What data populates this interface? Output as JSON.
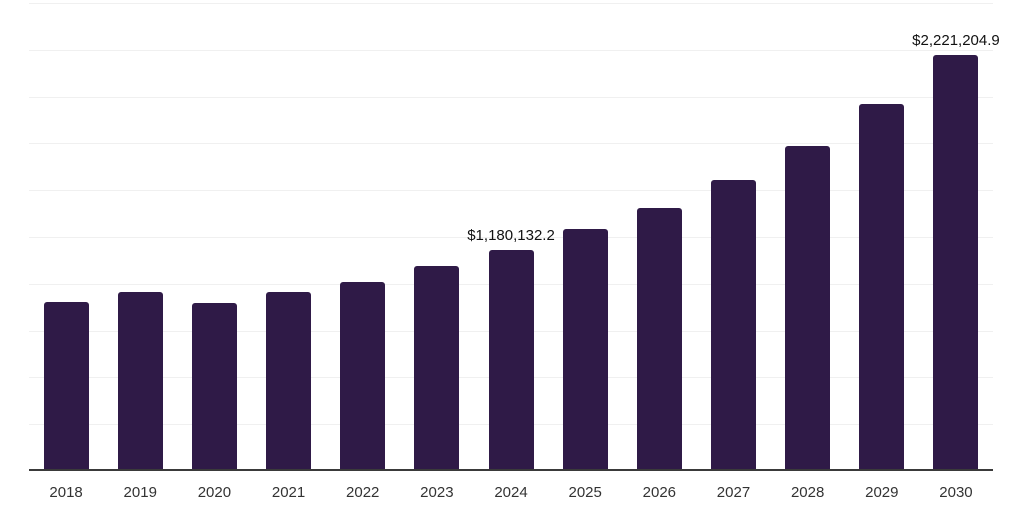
{
  "chart_data": {
    "type": "bar",
    "title": "",
    "xlabel": "",
    "ylabel": "",
    "categories": [
      "2018",
      "2019",
      "2020",
      "2021",
      "2022",
      "2023",
      "2024",
      "2025",
      "2026",
      "2027",
      "2028",
      "2029",
      "2030"
    ],
    "values": [
      902000,
      955000,
      897000,
      956000,
      1012000,
      1095000,
      1180132.2,
      1292000,
      1405000,
      1557000,
      1738000,
      1958000,
      2221204.9
    ],
    "data_labels": {
      "2024": "$1,180,132.2",
      "2030": "$2,221,204.9"
    },
    "ylim": [
      0,
      2500000
    ],
    "gridline_step": 250000,
    "y_tick_labels_visible": false,
    "legend": null,
    "grid": true,
    "colors": {
      "bar": "#2f1a47",
      "axis_line": "#3a3a3a",
      "gridline": "#f0f0f0",
      "data_label_text": "#111111",
      "x_tick_text": "#333333",
      "background": "#ffffff"
    }
  }
}
